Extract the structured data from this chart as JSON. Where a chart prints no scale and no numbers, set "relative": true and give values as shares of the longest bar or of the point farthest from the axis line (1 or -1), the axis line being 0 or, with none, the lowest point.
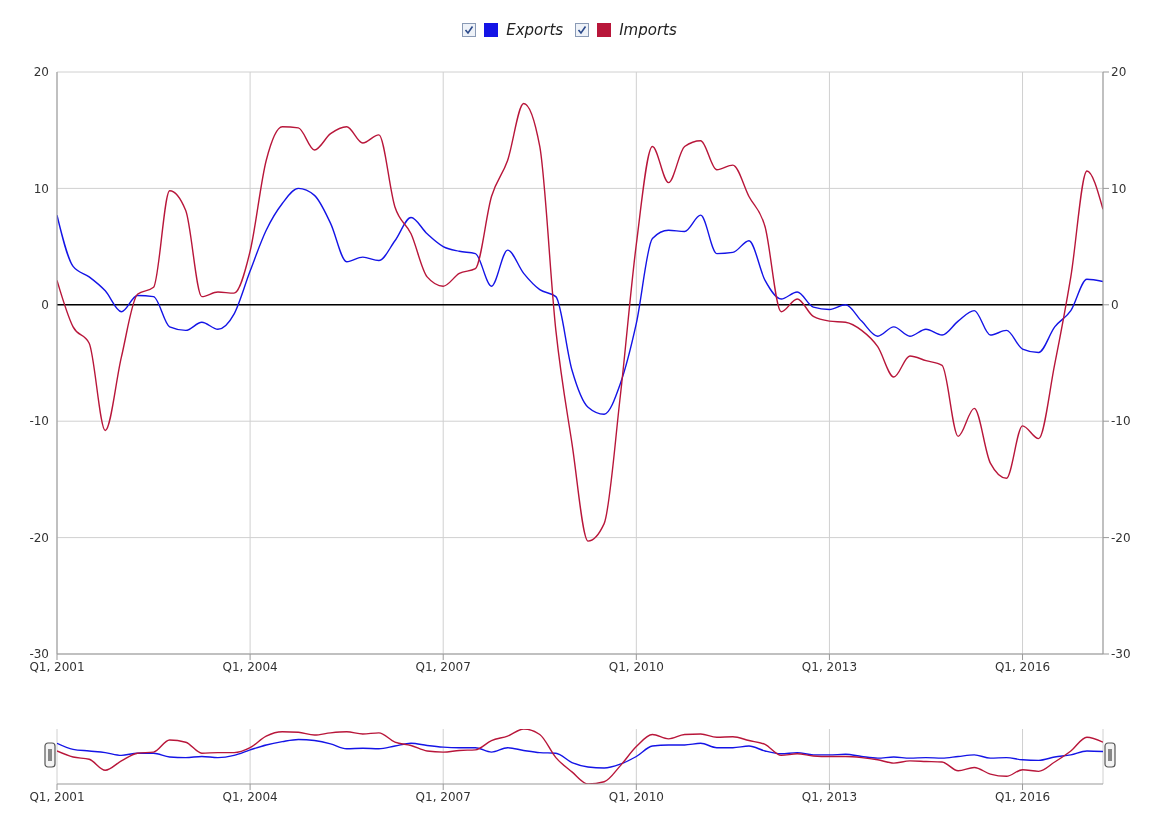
{
  "chart_data": [
    {
      "type": "line",
      "categories": [
        "Q1, 2001",
        null,
        null,
        null,
        null,
        null,
        null,
        null,
        null,
        null,
        null,
        null,
        "Q1, 2004",
        null,
        null,
        null,
        null,
        null,
        null,
        null,
        null,
        null,
        null,
        null,
        "Q1, 2007",
        null,
        null,
        null,
        null,
        null,
        null,
        null,
        null,
        null,
        null,
        null,
        "Q1, 2010",
        null,
        null,
        null,
        null,
        null,
        null,
        null,
        null,
        null,
        null,
        null,
        "Q1, 2013",
        null,
        null,
        null,
        null,
        null,
        null,
        null,
        null,
        null,
        null,
        null,
        "Q1, 2016",
        null,
        null,
        null,
        null,
        null
      ],
      "series": [
        {
          "name": "Exports",
          "color": "#1414e6",
          "values": [
            7.7,
            3.3,
            2.4,
            1.2,
            -0.6,
            0.8,
            0.7,
            -1.9,
            -2.2,
            -1.5,
            -2.1,
            -0.8,
            2.9,
            6.4,
            8.7,
            10.0,
            9.4,
            7.0,
            3.7,
            4.1,
            3.8,
            5.5,
            7.5,
            6.1,
            5.0,
            4.6,
            4.4,
            1.6,
            4.7,
            2.7,
            1.3,
            0.7,
            -5.6,
            -8.8,
            -9.4,
            -6.8,
            -1.6,
            5.7,
            6.4,
            6.3,
            7.7,
            4.4,
            4.5,
            5.5,
            2.1,
            0.5,
            1.1,
            -0.2,
            -0.4,
            0.0,
            -1.4,
            -2.7,
            -1.9,
            -2.7,
            -2.1,
            -2.6,
            -1.4,
            -0.5,
            -2.6,
            -2.2,
            -3.8,
            -4.1,
            -1.9,
            -0.5,
            2.2,
            2.0
          ]
        },
        {
          "name": "Imports",
          "color": "#b8163a",
          "values": [
            2.1,
            -1.9,
            -3.3,
            -10.8,
            -4.5,
            0.9,
            1.5,
            9.8,
            8.1,
            0.7,
            1.1,
            1.0,
            4.6,
            12.4,
            15.3,
            15.2,
            13.3,
            14.7,
            15.3,
            13.9,
            14.6,
            8.4,
            6.1,
            2.4,
            1.6,
            2.7,
            3.1,
            9.3,
            12.4,
            17.3,
            13.6,
            -2.2,
            -11.9,
            -20.3,
            -18.8,
            -7.9,
            5.2,
            13.6,
            10.5,
            13.6,
            14.1,
            11.6,
            12.0,
            9.3,
            6.7,
            -0.6,
            0.5,
            -1.0,
            -1.4,
            -1.5,
            -2.2,
            -3.6,
            -6.2,
            -4.4,
            -4.8,
            -5.2,
            -11.3,
            -8.9,
            -13.6,
            -14.9,
            -10.4,
            -11.5,
            -5.1,
            2.4,
            11.5,
            8.2
          ]
        }
      ],
      "ylim": [
        -30,
        20
      ],
      "yticks": [
        -30,
        -20,
        -10,
        0,
        10,
        20
      ],
      "y2lim": [
        -30,
        20
      ],
      "y2ticks": [
        -30,
        -20,
        -10,
        0,
        10,
        20
      ],
      "ref_lines": [
        {
          "axis": "y",
          "value": 0,
          "color": "#000000"
        }
      ],
      "grid": true,
      "legend": "top"
    },
    {
      "type": "line",
      "categories": [
        "Q1, 2001",
        null,
        null,
        null,
        null,
        null,
        null,
        null,
        null,
        null,
        null,
        null,
        "Q1, 2004",
        null,
        null,
        null,
        null,
        null,
        null,
        null,
        null,
        null,
        null,
        null,
        "Q1, 2007",
        null,
        null,
        null,
        null,
        null,
        null,
        null,
        null,
        null,
        null,
        null,
        "Q1, 2010",
        null,
        null,
        null,
        null,
        null,
        null,
        null,
        null,
        null,
        null,
        null,
        "Q1, 2013",
        null,
        null,
        null,
        null,
        null,
        null,
        null,
        null,
        null,
        null,
        null,
        "Q1, 2016",
        null,
        null,
        null,
        null,
        null
      ],
      "relative": true,
      "tick_labels": "x",
      "grid": "x",
      "series": [
        {
          "color": "#1414e6",
          "values": [
            0.74,
            0.63,
            0.6,
            0.57,
            0.52,
            0.56,
            0.56,
            0.49,
            0.48,
            0.5,
            0.48,
            0.52,
            0.62,
            0.71,
            0.77,
            0.81,
            0.79,
            0.73,
            0.64,
            0.65,
            0.64,
            0.69,
            0.74,
            0.7,
            0.67,
            0.66,
            0.66,
            0.58,
            0.66,
            0.61,
            0.57,
            0.56,
            0.39,
            0.31,
            0.29,
            0.36,
            0.5,
            0.69,
            0.71,
            0.71,
            0.74,
            0.66,
            0.66,
            0.69,
            0.6,
            0.55,
            0.57,
            0.53,
            0.53,
            0.54,
            0.5,
            0.47,
            0.49,
            0.47,
            0.48,
            0.47,
            0.5,
            0.53,
            0.47,
            0.48,
            0.44,
            0.43,
            0.49,
            0.53,
            0.6,
            0.59
          ]
        },
        {
          "color": "#b8163a",
          "values": [
            0.6,
            0.49,
            0.45,
            0.25,
            0.42,
            0.56,
            0.58,
            0.8,
            0.76,
            0.56,
            0.57,
            0.57,
            0.66,
            0.87,
            0.95,
            0.94,
            0.89,
            0.93,
            0.95,
            0.91,
            0.93,
            0.76,
            0.7,
            0.6,
            0.58,
            0.61,
            0.62,
            0.79,
            0.87,
            1,
            0.9,
            0.48,
            0.22,
            0,
            0.04,
            0.33,
            0.68,
            0.9,
            0.82,
            0.9,
            0.91,
            0.85,
            0.86,
            0.79,
            0.72,
            0.52,
            0.55,
            0.51,
            0.5,
            0.5,
            0.48,
            0.44,
            0.38,
            0.42,
            0.41,
            0.4,
            0.24,
            0.3,
            0.18,
            0.14,
            0.26,
            0.23,
            0.4,
            0.6,
            0.85,
            0.76
          ]
        }
      ]
    }
  ]
}
